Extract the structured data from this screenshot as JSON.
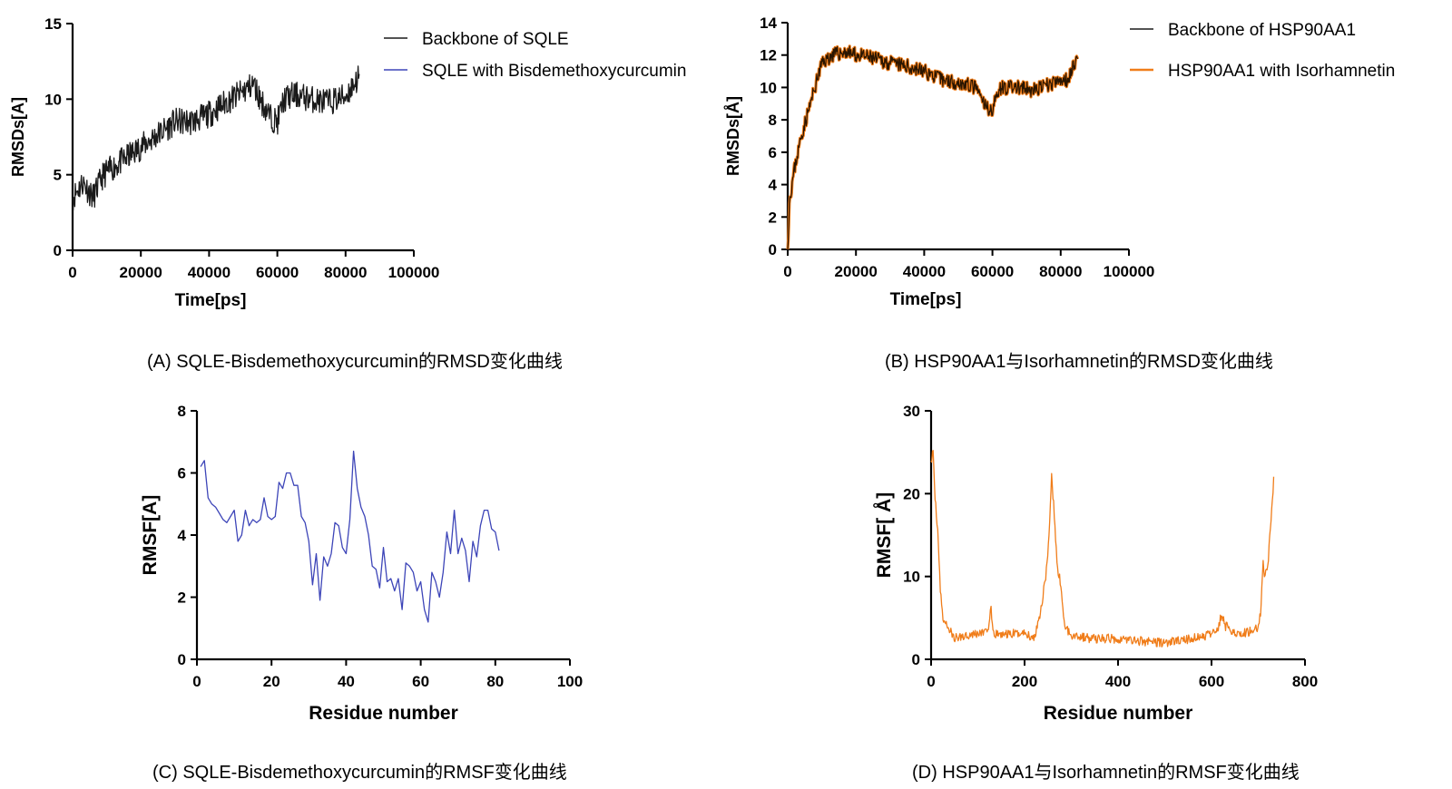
{
  "colors": {
    "axis": "#000000",
    "black": "#1a1a1a",
    "blue": "#3d45b8",
    "orange": "#f07d1a",
    "darkline": "#2a1500"
  },
  "captions": {
    "a": "(A) SQLE-Bisdemethoxycurcumin的RMSD变化曲线",
    "b": "(B) HSP90AA1与Isorhamnetin的RMSD变化曲线",
    "c": "(C) SQLE-Bisdemethoxycurcumin的RMSF变化曲线",
    "d": "(D) HSP90AA1与Isorhamnetin的RMSF变化曲线"
  },
  "chart_data": [
    {
      "id": "A",
      "type": "line",
      "xlabel": "Time[ps]",
      "ylabel": "RMSDs[A]",
      "xlim": [
        0,
        100000
      ],
      "ylim": [
        0,
        15
      ],
      "xticks": [
        0,
        20000,
        40000,
        60000,
        80000,
        100000
      ],
      "yticks": [
        0,
        5,
        10,
        15
      ],
      "legend": "top-right",
      "series": [
        {
          "name": "Backbone of SQLE",
          "color": "#1a1a1a",
          "noise": 0.9,
          "seed": 11,
          "points": [
            [
              0,
              3.5
            ],
            [
              3000,
              4.5
            ],
            [
              6000,
              3.5
            ],
            [
              9000,
              5.0
            ],
            [
              12000,
              5.5
            ],
            [
              15000,
              6.0
            ],
            [
              18000,
              6.5
            ],
            [
              21000,
              7.0
            ],
            [
              24000,
              7.5
            ],
            [
              27000,
              8.0
            ],
            [
              30000,
              8.5
            ],
            [
              35000,
              8.5
            ],
            [
              40000,
              9.0
            ],
            [
              45000,
              9.8
            ],
            [
              50000,
              10.5
            ],
            [
              53000,
              11.0
            ],
            [
              55000,
              10.0
            ],
            [
              58000,
              8.8
            ],
            [
              60000,
              8.5
            ],
            [
              62000,
              10.0
            ],
            [
              65000,
              10.3
            ],
            [
              70000,
              10.0
            ],
            [
              75000,
              9.8
            ],
            [
              80000,
              10.2
            ],
            [
              84000,
              11.5
            ]
          ]
        },
        {
          "name": "SQLE with Bisdemethoxycurcumin",
          "color": "#3d45b8",
          "noise": 0,
          "seed": 0,
          "points": []
        }
      ]
    },
    {
      "id": "B",
      "type": "line",
      "xlabel": "Time[ps]",
      "ylabel": "RMSDs[Å]",
      "xlim": [
        0,
        100000
      ],
      "ylim": [
        0,
        14
      ],
      "xticks": [
        0,
        20000,
        40000,
        60000,
        80000,
        100000
      ],
      "yticks": [
        0,
        2,
        4,
        6,
        8,
        10,
        12,
        14
      ],
      "legend": "top-right",
      "series": [
        {
          "name": "Backbone of HSP90AA1",
          "color": "#1a1a1a",
          "noise": 0.45,
          "seed": 23,
          "points": [
            [
              0,
              0
            ],
            [
              500,
              3.0
            ],
            [
              2000,
              5.0
            ],
            [
              4000,
              7.0
            ],
            [
              6000,
              8.5
            ],
            [
              8000,
              10.0
            ],
            [
              10000,
              11.5
            ],
            [
              13000,
              12.0
            ],
            [
              17000,
              12.2
            ],
            [
              20000,
              12.0
            ],
            [
              25000,
              11.8
            ],
            [
              30000,
              11.5
            ],
            [
              35000,
              11.3
            ],
            [
              40000,
              11.0
            ],
            [
              45000,
              10.5
            ],
            [
              50000,
              10.3
            ],
            [
              55000,
              10.0
            ],
            [
              58000,
              8.8
            ],
            [
              60000,
              8.6
            ],
            [
              62000,
              10.0
            ],
            [
              67000,
              10.0
            ],
            [
              72000,
              9.8
            ],
            [
              77000,
              10.2
            ],
            [
              82000,
              10.5
            ],
            [
              85000,
              12.0
            ]
          ]
        },
        {
          "name": "HSP90AA1 with Isorhamnetin",
          "color": "#f07d1a",
          "noise": 0,
          "seed": 0,
          "points": []
        }
      ]
    },
    {
      "id": "C",
      "type": "line",
      "xlabel": "Residue number",
      "ylabel": "RMSF[A]",
      "xlim": [
        0,
        100
      ],
      "ylim": [
        0,
        8
      ],
      "xticks": [
        0,
        20,
        40,
        60,
        80,
        100
      ],
      "yticks": [
        0,
        2,
        4,
        6,
        8
      ],
      "series": [
        {
          "name": "RMSF",
          "color": "#3d45b8",
          "noise": 0,
          "seed": 0,
          "points": [
            [
              1,
              6.2
            ],
            [
              2,
              6.4
            ],
            [
              3,
              5.2
            ],
            [
              4,
              5.0
            ],
            [
              5,
              4.9
            ],
            [
              6,
              4.7
            ],
            [
              7,
              4.5
            ],
            [
              8,
              4.4
            ],
            [
              9,
              4.6
            ],
            [
              10,
              4.8
            ],
            [
              11,
              3.8
            ],
            [
              12,
              4.0
            ],
            [
              13,
              4.8
            ],
            [
              14,
              4.3
            ],
            [
              15,
              4.5
            ],
            [
              16,
              4.4
            ],
            [
              17,
              4.5
            ],
            [
              18,
              5.2
            ],
            [
              19,
              4.6
            ],
            [
              20,
              4.5
            ],
            [
              21,
              4.6
            ],
            [
              22,
              5.7
            ],
            [
              23,
              5.5
            ],
            [
              24,
              6.0
            ],
            [
              25,
              6.0
            ],
            [
              26,
              5.6
            ],
            [
              27,
              5.6
            ],
            [
              28,
              4.6
            ],
            [
              29,
              4.4
            ],
            [
              30,
              3.8
            ],
            [
              31,
              2.4
            ],
            [
              32,
              3.4
            ],
            [
              33,
              1.9
            ],
            [
              34,
              3.3
            ],
            [
              35,
              3.0
            ],
            [
              36,
              3.4
            ],
            [
              37,
              4.4
            ],
            [
              38,
              4.3
            ],
            [
              39,
              3.6
            ],
            [
              40,
              3.4
            ],
            [
              41,
              4.5
            ],
            [
              42,
              6.7
            ],
            [
              43,
              5.5
            ],
            [
              44,
              4.9
            ],
            [
              45,
              4.6
            ],
            [
              46,
              4.0
            ],
            [
              47,
              3.0
            ],
            [
              48,
              2.9
            ],
            [
              49,
              2.3
            ],
            [
              50,
              3.6
            ],
            [
              51,
              2.5
            ],
            [
              52,
              2.6
            ],
            [
              53,
              2.2
            ],
            [
              54,
              2.6
            ],
            [
              55,
              1.6
            ],
            [
              56,
              3.1
            ],
            [
              57,
              3.0
            ],
            [
              58,
              2.8
            ],
            [
              59,
              2.2
            ],
            [
              60,
              2.5
            ],
            [
              61,
              1.6
            ],
            [
              62,
              1.2
            ],
            [
              63,
              2.8
            ],
            [
              64,
              2.5
            ],
            [
              65,
              2.0
            ],
            [
              66,
              2.8
            ],
            [
              67,
              4.1
            ],
            [
              68,
              3.4
            ],
            [
              69,
              4.8
            ],
            [
              70,
              3.4
            ],
            [
              71,
              3.9
            ],
            [
              72,
              3.5
            ],
            [
              73,
              2.5
            ],
            [
              74,
              3.8
            ],
            [
              75,
              3.3
            ],
            [
              76,
              4.3
            ],
            [
              77,
              4.8
            ],
            [
              78,
              4.8
            ],
            [
              79,
              4.2
            ],
            [
              80,
              4.1
            ],
            [
              81,
              3.5
            ]
          ]
        }
      ]
    },
    {
      "id": "D",
      "type": "line",
      "xlabel": "Residue number",
      "ylabel": "RMSF[ Å]",
      "xlim": [
        0,
        800
      ],
      "ylim": [
        0,
        30
      ],
      "xticks": [
        0,
        200,
        400,
        600,
        800
      ],
      "yticks": [
        0,
        10,
        20,
        30
      ],
      "series": [
        {
          "name": "RMSF",
          "color": "#f07d1a",
          "noise": 0.55,
          "seed": 37,
          "points": [
            [
              0,
              24
            ],
            [
              4,
              25
            ],
            [
              8,
              20
            ],
            [
              15,
              15
            ],
            [
              20,
              8
            ],
            [
              25,
              5
            ],
            [
              35,
              4
            ],
            [
              50,
              2.5
            ],
            [
              80,
              3
            ],
            [
              110,
              3.2
            ],
            [
              125,
              4
            ],
            [
              128,
              6.5
            ],
            [
              132,
              3
            ],
            [
              160,
              3
            ],
            [
              200,
              3.2
            ],
            [
              220,
              2.5
            ],
            [
              235,
              6
            ],
            [
              245,
              10
            ],
            [
              252,
              14
            ],
            [
              258,
              22
            ],
            [
              263,
              18
            ],
            [
              270,
              11
            ],
            [
              278,
              9
            ],
            [
              285,
              4
            ],
            [
              300,
              3
            ],
            [
              340,
              2.5
            ],
            [
              400,
              2.5
            ],
            [
              450,
              2.2
            ],
            [
              500,
              2
            ],
            [
              560,
              2.5
            ],
            [
              600,
              3
            ],
            [
              615,
              4
            ],
            [
              622,
              5.5
            ],
            [
              630,
              4
            ],
            [
              660,
              3
            ],
            [
              690,
              3.5
            ],
            [
              700,
              4
            ],
            [
              706,
              6
            ],
            [
              710,
              12
            ],
            [
              714,
              10
            ],
            [
              720,
              11
            ],
            [
              728,
              17
            ],
            [
              733,
              21.5
            ]
          ]
        }
      ]
    }
  ]
}
